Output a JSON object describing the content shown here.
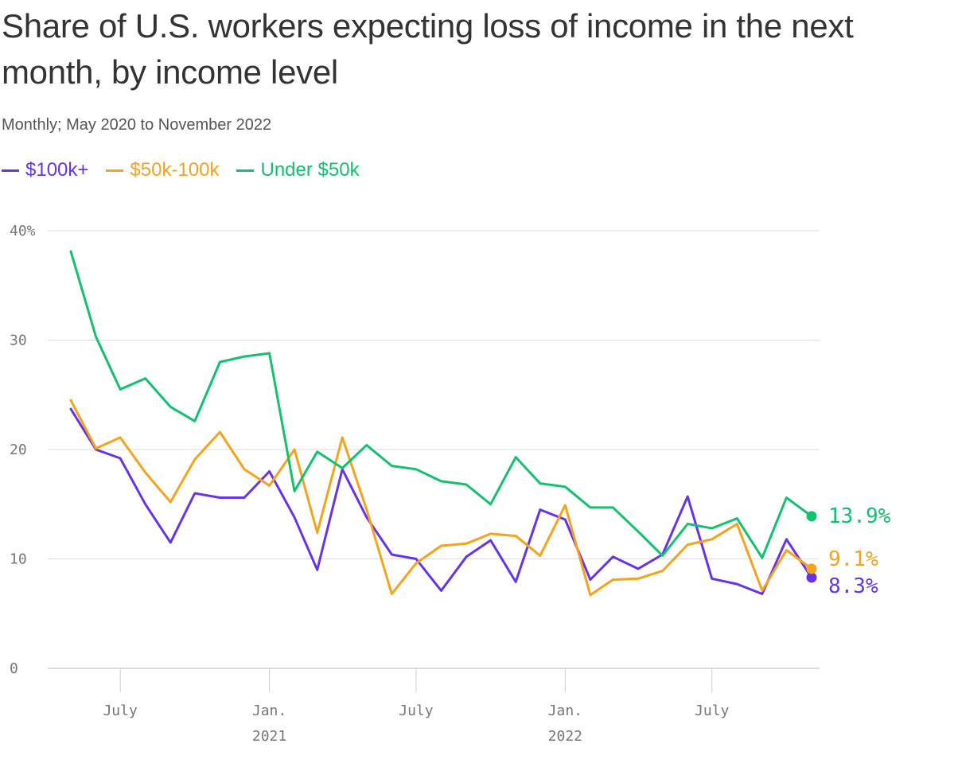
{
  "chart_data": {
    "type": "line",
    "title": "Share of U.S. workers expecting loss of income in the next month, by income level",
    "subtitle": "Monthly; May 2020 to November 2022",
    "ylim": [
      0,
      40
    ],
    "y_ticks": [
      {
        "value": 0,
        "label": "0"
      },
      {
        "value": 10,
        "label": "10"
      },
      {
        "value": 20,
        "label": "20"
      },
      {
        "value": 30,
        "label": "30"
      },
      {
        "value": 40,
        "label": "40%"
      }
    ],
    "x_ticks": [
      {
        "date": "2020-07-01",
        "label": "July",
        "sublabel": ""
      },
      {
        "date": "2021-01-01",
        "label": "Jan.",
        "sublabel": "2021"
      },
      {
        "date": "2021-07-01",
        "label": "July",
        "sublabel": ""
      },
      {
        "date": "2022-01-01",
        "label": "Jan.",
        "sublabel": "2022"
      },
      {
        "date": "2022-07-01",
        "label": "July",
        "sublabel": ""
      }
    ],
    "x": [
      "2020-05-01",
      "2020-06-01",
      "2020-07-01",
      "2020-08-01",
      "2020-09-01",
      "2020-10-01",
      "2020-11-01",
      "2020-12-01",
      "2021-01-01",
      "2021-02-01",
      "2021-03-01",
      "2021-04-01",
      "2021-05-01",
      "2021-06-01",
      "2021-07-01",
      "2021-08-01",
      "2021-09-01",
      "2021-10-01",
      "2021-11-01",
      "2021-12-01",
      "2022-01-01",
      "2022-02-01",
      "2022-03-01",
      "2022-04-01",
      "2022-05-01",
      "2022-06-01",
      "2022-07-01",
      "2022-08-01",
      "2022-09-01",
      "2022-10-01",
      "2022-11-01"
    ],
    "series": [
      {
        "name": "$100k+",
        "color": "#6533ee",
        "end_label": "8.3%",
        "values": [
          23.7,
          20.0,
          19.2,
          15.0,
          11.5,
          16.0,
          15.6,
          15.6,
          18.0,
          13.8,
          9.0,
          18.2,
          13.8,
          10.4,
          10.0,
          7.1,
          10.2,
          11.7,
          7.9,
          14.5,
          13.6,
          8.1,
          10.2,
          9.1,
          10.4,
          15.7,
          8.2,
          7.7,
          6.8,
          11.8,
          8.3
        ]
      },
      {
        "name": "$50k-100k",
        "color": "#f7a21b",
        "end_label": "9.1%",
        "values": [
          24.5,
          20.1,
          21.1,
          17.9,
          15.2,
          19.1,
          21.6,
          18.2,
          16.7,
          20.0,
          12.4,
          21.1,
          14.5,
          6.8,
          9.6,
          11.2,
          11.4,
          12.3,
          12.1,
          10.3,
          14.9,
          6.7,
          8.1,
          8.2,
          8.9,
          11.3,
          11.8,
          13.2,
          7.1,
          10.8,
          9.1
        ]
      },
      {
        "name": "Under $50k",
        "color": "#11c26d",
        "end_label": "13.9%",
        "values": [
          38.1,
          30.3,
          25.5,
          26.5,
          23.9,
          22.6,
          28.0,
          28.5,
          28.8,
          16.2,
          19.8,
          18.3,
          20.4,
          18.5,
          18.2,
          17.1,
          16.8,
          15.0,
          19.3,
          16.9,
          16.6,
          14.7,
          14.7,
          12.5,
          10.3,
          13.2,
          12.8,
          13.7,
          10.1,
          15.6,
          13.9
        ]
      }
    ]
  }
}
